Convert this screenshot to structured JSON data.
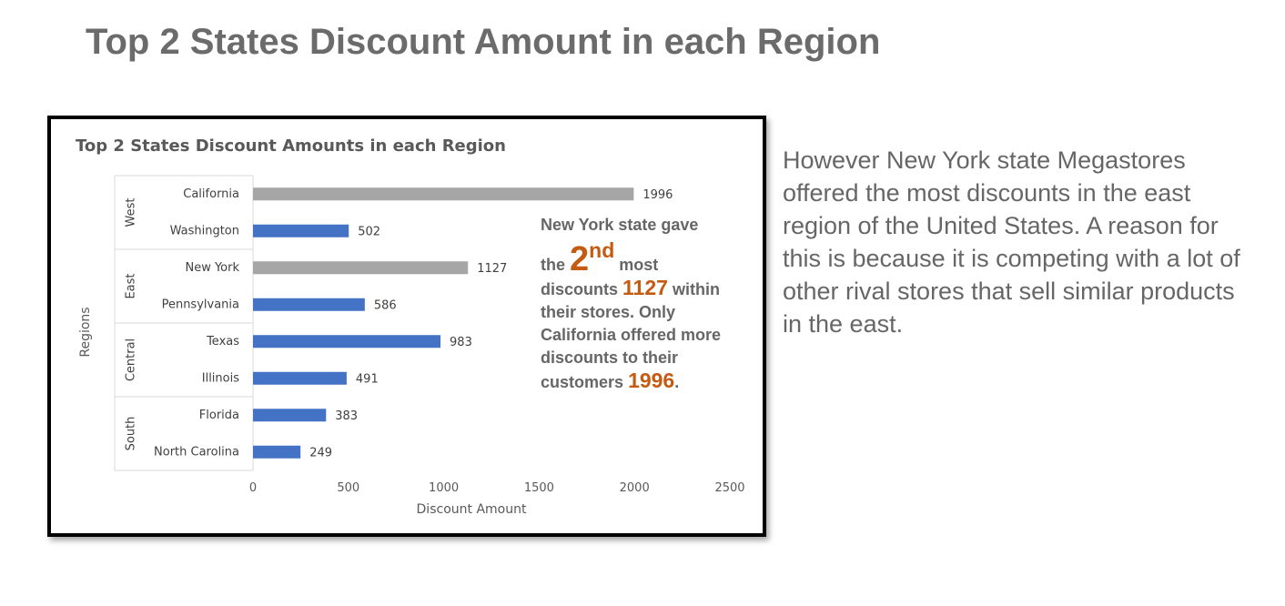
{
  "slide": {
    "title": "Top 2 States Discount Amount in each Region"
  },
  "callout": {
    "line1": "New York state gave",
    "the": "the",
    "rank_number": "2",
    "rank_suffix": "nd",
    "most": "most",
    "discounts": "discounts",
    "ny_value": "1127",
    "within": "within",
    "line4": "their stores. Only",
    "line5": "California offered more",
    "line6": "discounts to their",
    "customers": "customers",
    "ca_value": "1996",
    "period": "."
  },
  "side_text": "However New York state Megastores offered the most discounts in the east region of the United States. A reason for this is because it is competing with a lot of other rival stores that sell similar products in the east.",
  "chart_data": {
    "type": "bar",
    "orientation": "horizontal",
    "title": "Top 2 States Discount Amounts in each Region",
    "xlabel": "Discount Amount",
    "ylabel": "Regions",
    "xlim": [
      0,
      2500
    ],
    "xticks": [
      0,
      500,
      1000,
      1500,
      2000,
      2500
    ],
    "grid": false,
    "legend": "none",
    "groups": [
      {
        "region": "West",
        "states": [
          "California",
          "Washington"
        ]
      },
      {
        "region": "East",
        "states": [
          "New York",
          "Pennsylvania"
        ]
      },
      {
        "region": "Central",
        "states": [
          "Texas",
          "Illinois"
        ]
      },
      {
        "region": "South",
        "states": [
          "Florida",
          "North Carolina"
        ]
      }
    ],
    "categories": [
      "California",
      "Washington",
      "New York",
      "Pennsylvania",
      "Texas",
      "Illinois",
      "Florida",
      "North Carolina"
    ],
    "values": [
      1996,
      502,
      1127,
      586,
      983,
      491,
      383,
      249
    ],
    "bar_colors": [
      "#a6a6a6",
      "#4472c4",
      "#a6a6a6",
      "#4472c4",
      "#4472c4",
      "#4472c4",
      "#4472c4",
      "#4472c4"
    ],
    "colors": {
      "highlight": "#a6a6a6",
      "default": "#4472c4"
    }
  }
}
